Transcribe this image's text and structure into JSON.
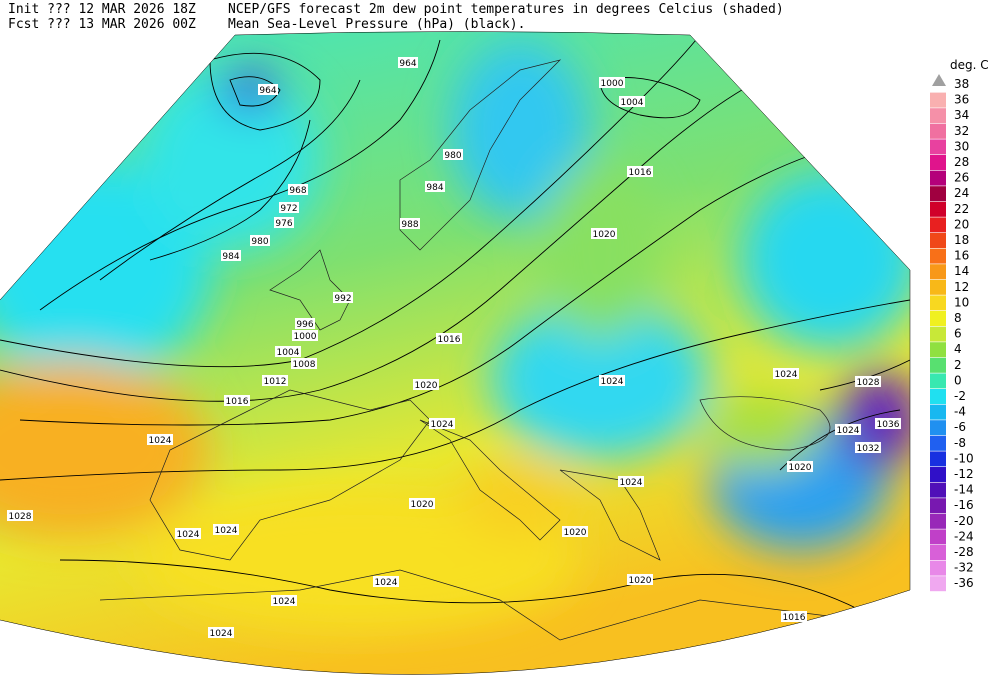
{
  "header": {
    "init": "Init  ??? 12 MAR 2026 18Z",
    "fcst": "Fcst ??? 13 MAR 2026 00Z",
    "title": "NCEP/GFS forecast 2m dew point temperatures in degrees Celcius (shaded)",
    "subtitle": "Mean Sea-Level Pressure (hPa) (black)."
  },
  "legend": {
    "title": "deg. C",
    "levels": [
      38,
      36,
      34,
      32,
      30,
      28,
      26,
      24,
      22,
      20,
      18,
      16,
      14,
      12,
      10,
      8,
      6,
      4,
      2,
      0,
      -2,
      -4,
      -6,
      -8,
      -10,
      -12,
      -14,
      -16,
      -20,
      -24,
      -28,
      -32,
      -36
    ],
    "colors": [
      "#a0a0a0",
      "#f9b0b0",
      "#f590a8",
      "#f070a0",
      "#e8419f",
      "#e0148c",
      "#b4007a",
      "#a00040",
      "#d0002a",
      "#e82020",
      "#f04818",
      "#f87018",
      "#f89818",
      "#f8b818",
      "#f8d820",
      "#f0f020",
      "#c8e838",
      "#90e040",
      "#58e070",
      "#38e8b0",
      "#20e0f0",
      "#18b8f0",
      "#2090f0",
      "#2060f0",
      "#1830e0",
      "#3010c8",
      "#5010b8",
      "#7818b0",
      "#9828b8",
      "#c040c8",
      "#d860d8",
      "#e888e8",
      "#f0a8f0"
    ]
  },
  "isobar_labels": [
    "964",
    "964",
    "1000",
    "1004",
    "980",
    "984",
    "968",
    "972",
    "976",
    "980",
    "984",
    "988",
    "1016",
    "1020",
    "992",
    "996",
    "1000",
    "1004",
    "1008",
    "1012",
    "1016",
    "1016",
    "1020",
    "1024",
    "1024",
    "1028",
    "1024",
    "1036",
    "1032",
    "1020",
    "1024",
    "1024",
    "1028",
    "1024",
    "1024",
    "1020",
    "1024",
    "1020",
    "1020",
    "1024",
    "1024",
    "1024",
    "1016"
  ]
}
